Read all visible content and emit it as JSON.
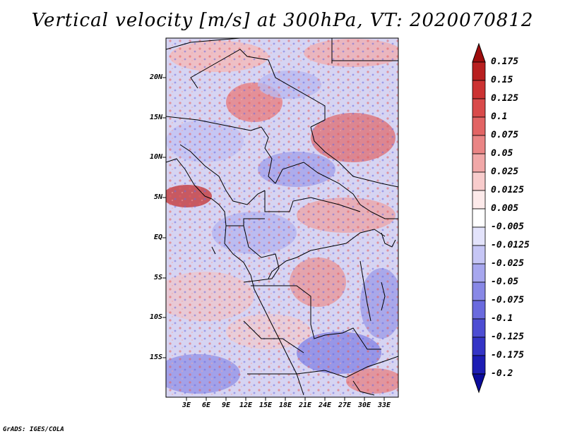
{
  "title": "Vertical velocity [m/s] at 300hPa, VT: 2020070812",
  "lat_labels": [
    "20N",
    "15N",
    "10N",
    "5N",
    "EQ",
    "5S",
    "10S",
    "15S"
  ],
  "lon_labels": [
    "3E",
    "6E",
    "9E",
    "12E",
    "15E",
    "18E",
    "21E",
    "24E",
    "27E",
    "30E",
    "33E"
  ],
  "colorbar": {
    "labels": [
      "0.175",
      "0.15",
      "0.125",
      "0.1",
      "0.075",
      "0.05",
      "0.025",
      "0.0125",
      "0.005",
      "-0.005",
      "-0.0125",
      "-0.025",
      "-0.05",
      "-0.075",
      "-0.1",
      "-0.125",
      "-0.175",
      "-0.2"
    ],
    "colors": [
      "#9e0d0d",
      "#b81f1f",
      "#cc3232",
      "#d94a4a",
      "#e26464",
      "#ea8585",
      "#f1a8a8",
      "#f8cccc",
      "#fdeaea",
      "#ffffff",
      "#e3e3fb",
      "#c6c6f5",
      "#a7a7ee",
      "#8888e6",
      "#6a6ade",
      "#4d4dd3",
      "#3434c6",
      "#1d1db4",
      "#0b0b9c"
    ]
  },
  "credit": "GrADS: IGES/COLA"
}
